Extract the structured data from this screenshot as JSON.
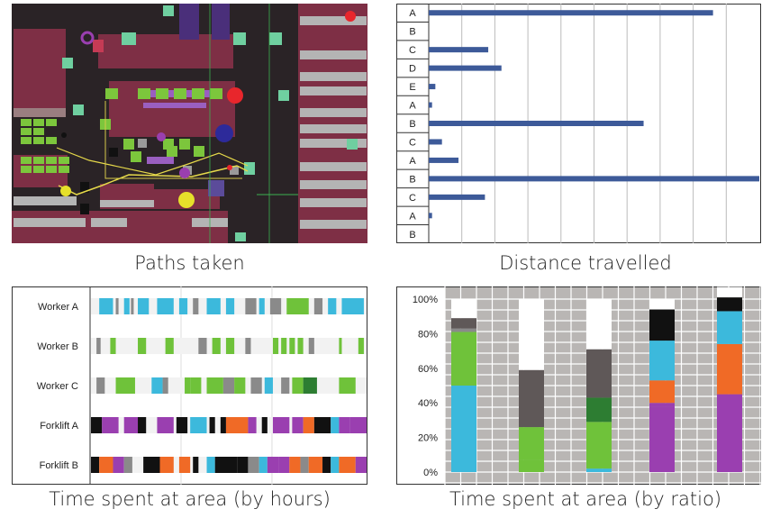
{
  "captions": {
    "paths": "Paths taken",
    "distance": "Distance travelled",
    "hours": "Time spent at area (by hours)",
    "ratio": "Time spent at area (by ratio)"
  },
  "colors": {
    "bar": "#3d5a99",
    "cyan": "#3cb9dc",
    "green": "#6fc23a",
    "gray": "#8a8a8a",
    "darkgreen": "#2d7d32",
    "purple": "#9a3fb0",
    "orange": "#f06a26",
    "black": "#111111",
    "white": "#ffffff",
    "darkgray": "#5f5858"
  },
  "chart_data": [
    {
      "type": "bar",
      "orientation": "horizontal",
      "title": "Distance travelled",
      "categories": [
        "A",
        "B",
        "C",
        "D",
        "E",
        "A",
        "B",
        "C",
        "A",
        "B",
        "C",
        "A",
        "B"
      ],
      "values": [
        86,
        0,
        18,
        22,
        2,
        1,
        65,
        4,
        9,
        100,
        17,
        1,
        0
      ],
      "xlim": [
        0,
        100
      ],
      "grid": true
    },
    {
      "type": "timeline",
      "title": "Time spent at area (by hours)",
      "rows": [
        {
          "name": "Worker A",
          "segments": [
            [
              0.03,
              0.08,
              "cyan"
            ],
            [
              0.09,
              0.1,
              "gray"
            ],
            [
              0.12,
              0.14,
              "cyan"
            ],
            [
              0.145,
              0.155,
              "gray"
            ],
            [
              0.17,
              0.21,
              "cyan"
            ],
            [
              0.24,
              0.3,
              "cyan"
            ],
            [
              0.32,
              0.35,
              "cyan"
            ],
            [
              0.37,
              0.39,
              "gray"
            ],
            [
              0.42,
              0.47,
              "cyan"
            ],
            [
              0.49,
              0.52,
              "cyan"
            ],
            [
              0.56,
              0.6,
              "gray"
            ],
            [
              0.61,
              0.63,
              "cyan"
            ],
            [
              0.65,
              0.69,
              "gray"
            ],
            [
              0.71,
              0.79,
              "green"
            ],
            [
              0.81,
              0.84,
              "gray"
            ],
            [
              0.86,
              0.89,
              "cyan"
            ],
            [
              0.91,
              0.99,
              "cyan"
            ]
          ]
        },
        {
          "name": "Worker B",
          "segments": [
            [
              0.02,
              0.035,
              "gray"
            ],
            [
              0.07,
              0.09,
              "green"
            ],
            [
              0.17,
              0.2,
              "green"
            ],
            [
              0.27,
              0.3,
              "green"
            ],
            [
              0.39,
              0.42,
              "gray"
            ],
            [
              0.44,
              0.47,
              "green"
            ],
            [
              0.49,
              0.52,
              "green"
            ],
            [
              0.56,
              0.58,
              "gray"
            ],
            [
              0.66,
              0.68,
              "green"
            ],
            [
              0.69,
              0.71,
              "green"
            ],
            [
              0.72,
              0.74,
              "green"
            ],
            [
              0.75,
              0.77,
              "green"
            ],
            [
              0.79,
              0.81,
              "gray"
            ],
            [
              0.9,
              0.91,
              "green"
            ],
            [
              0.97,
              0.99,
              "green"
            ]
          ]
        },
        {
          "name": "Worker C",
          "segments": [
            [
              0.02,
              0.05,
              "gray"
            ],
            [
              0.09,
              0.16,
              "green"
            ],
            [
              0.22,
              0.26,
              "cyan"
            ],
            [
              0.26,
              0.28,
              "gray"
            ],
            [
              0.34,
              0.36,
              "green"
            ],
            [
              0.36,
              0.4,
              "green"
            ],
            [
              0.42,
              0.48,
              "green"
            ],
            [
              0.48,
              0.52,
              "gray"
            ],
            [
              0.52,
              0.56,
              "green"
            ],
            [
              0.58,
              0.62,
              "gray"
            ],
            [
              0.63,
              0.66,
              "cyan"
            ],
            [
              0.69,
              0.72,
              "gray"
            ],
            [
              0.73,
              0.77,
              "green"
            ],
            [
              0.77,
              0.82,
              "darkgreen"
            ],
            [
              0.9,
              0.96,
              "green"
            ]
          ]
        },
        {
          "name": "Forklift A",
          "segments": [
            [
              0.0,
              0.04,
              "black"
            ],
            [
              0.04,
              0.1,
              "purple"
            ],
            [
              0.12,
              0.17,
              "purple"
            ],
            [
              0.17,
              0.2,
              "black"
            ],
            [
              0.24,
              0.3,
              "purple"
            ],
            [
              0.31,
              0.35,
              "black"
            ],
            [
              0.36,
              0.42,
              "cyan"
            ],
            [
              0.43,
              0.45,
              "black"
            ],
            [
              0.47,
              0.49,
              "black"
            ],
            [
              0.49,
              0.57,
              "orange"
            ],
            [
              0.57,
              0.6,
              "purple"
            ],
            [
              0.62,
              0.64,
              "black"
            ],
            [
              0.66,
              0.72,
              "purple"
            ],
            [
              0.73,
              0.77,
              "purple"
            ],
            [
              0.77,
              0.81,
              "orange"
            ],
            [
              0.81,
              0.87,
              "black"
            ],
            [
              0.87,
              0.9,
              "cyan"
            ],
            [
              0.9,
              0.94,
              "purple"
            ],
            [
              0.94,
              1.0,
              "purple"
            ]
          ]
        },
        {
          "name": "Forklift B",
          "segments": [
            [
              0.0,
              0.03,
              "black"
            ],
            [
              0.03,
              0.08,
              "orange"
            ],
            [
              0.08,
              0.12,
              "purple"
            ],
            [
              0.12,
              0.15,
              "gray"
            ],
            [
              0.19,
              0.25,
              "black"
            ],
            [
              0.25,
              0.3,
              "orange"
            ],
            [
              0.32,
              0.36,
              "orange"
            ],
            [
              0.37,
              0.39,
              "black"
            ],
            [
              0.42,
              0.45,
              "cyan"
            ],
            [
              0.45,
              0.53,
              "black"
            ],
            [
              0.53,
              0.57,
              "black"
            ],
            [
              0.57,
              0.61,
              "gray"
            ],
            [
              0.61,
              0.64,
              "cyan"
            ],
            [
              0.64,
              0.68,
              "purple"
            ],
            [
              0.68,
              0.72,
              "purple"
            ],
            [
              0.72,
              0.76,
              "orange"
            ],
            [
              0.76,
              0.79,
              "gray"
            ],
            [
              0.79,
              0.84,
              "orange"
            ],
            [
              0.84,
              0.87,
              "black"
            ],
            [
              0.87,
              0.9,
              "cyan"
            ],
            [
              0.9,
              0.96,
              "orange"
            ],
            [
              0.96,
              1.0,
              "purple"
            ]
          ]
        }
      ]
    },
    {
      "type": "stacked_bar",
      "title": "Time spent at area (by ratio)",
      "ylim": [
        0,
        100
      ],
      "yticks": [
        "100%",
        "80%",
        "60%",
        "40%",
        "20%",
        "0%"
      ],
      "columns": [
        [
          [
            "cyan",
            50
          ],
          [
            "green",
            31
          ],
          [
            "gray",
            2
          ],
          [
            "darkgray",
            6
          ],
          [
            "white",
            11
          ]
        ],
        [
          [
            "green",
            7
          ],
          [
            "green",
            19
          ],
          [
            "darkgray",
            33
          ],
          [
            "white",
            41
          ]
        ],
        [
          [
            "cyan",
            2
          ],
          [
            "green",
            27
          ],
          [
            "darkgreen",
            14
          ],
          [
            "darkgray",
            28
          ],
          [
            "white",
            29
          ]
        ],
        [
          [
            "purple",
            38
          ],
          [
            "purple",
            2
          ],
          [
            "orange",
            13
          ],
          [
            "cyan",
            23
          ],
          [
            "black",
            18
          ],
          [
            "white",
            6
          ]
        ],
        [
          [
            "purple",
            45
          ],
          [
            "orange",
            29
          ],
          [
            "cyan",
            19
          ],
          [
            "black",
            8
          ],
          [
            "white",
            6
          ]
        ]
      ]
    }
  ]
}
